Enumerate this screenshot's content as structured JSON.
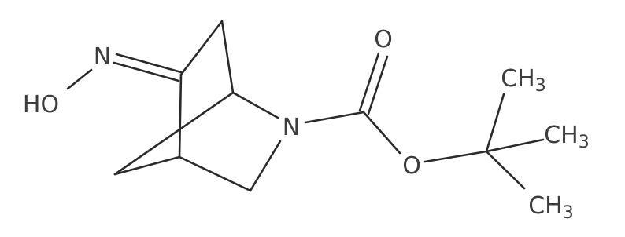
{
  "atoms": [
    {
      "main": "N"
    },
    {
      "main": "HO"
    },
    {
      "main": "N"
    },
    {
      "main": "O"
    },
    {
      "main": "O"
    },
    {
      "main": "CH",
      "sub": "3"
    },
    {
      "main": "CH",
      "sub": "3"
    },
    {
      "main": "CH",
      "sub": "3"
    }
  ]
}
